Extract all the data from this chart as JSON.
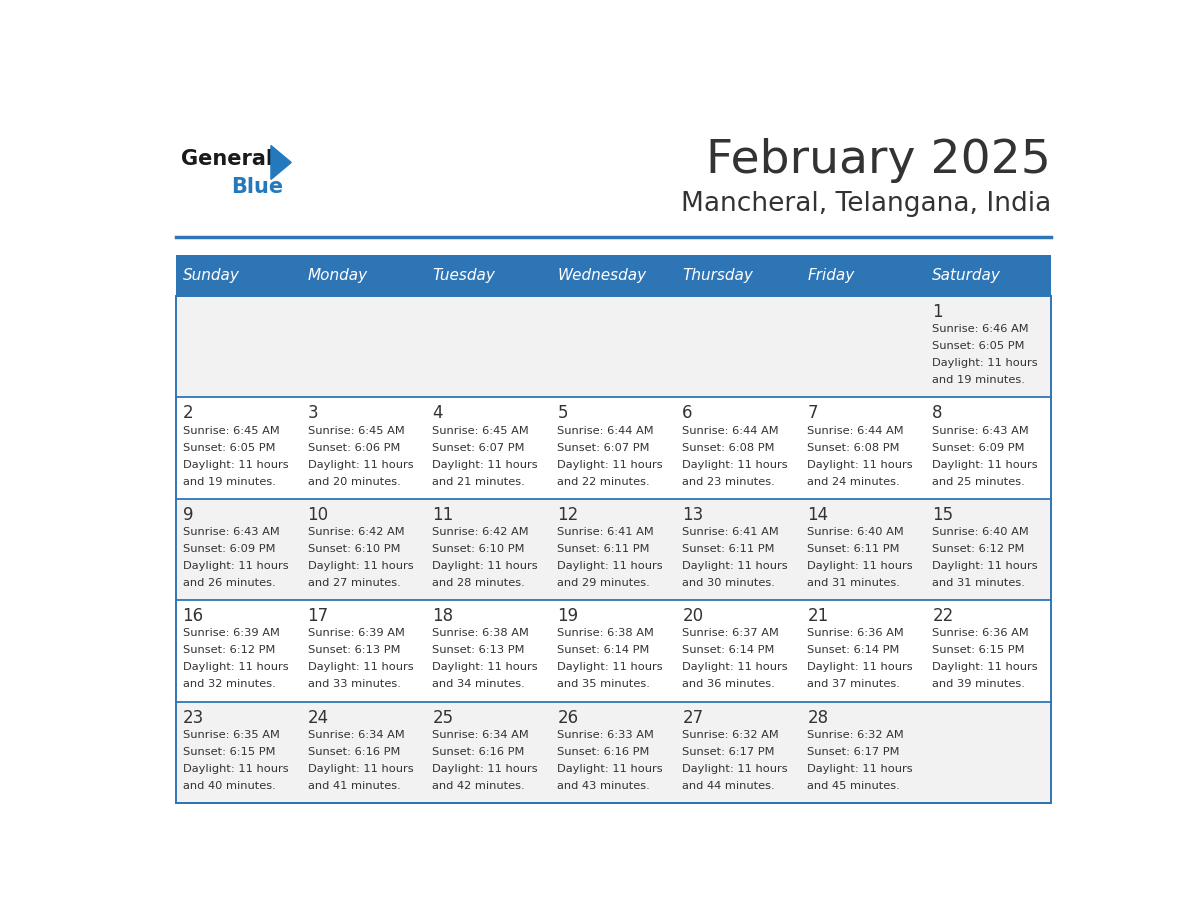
{
  "title": "February 2025",
  "subtitle": "Mancheral, Telangana, India",
  "header_bg": "#2E75B6",
  "header_text_color": "#FFFFFF",
  "day_names": [
    "Sunday",
    "Monday",
    "Tuesday",
    "Wednesday",
    "Thursday",
    "Friday",
    "Saturday"
  ],
  "row_bg_even": "#F2F2F2",
  "row_bg_odd": "#FFFFFF",
  "cell_border_color": "#2E75B6",
  "text_color": "#333333",
  "date_color": "#333333",
  "logo_general_color": "#1a1a1a",
  "logo_blue_color": "#2479BD",
  "days_data": [
    {
      "day": 1,
      "col": 6,
      "row": 0,
      "sunrise": "6:46 AM",
      "sunset": "6:05 PM",
      "daylight_hours": 11,
      "daylight_minutes": 19
    },
    {
      "day": 2,
      "col": 0,
      "row": 1,
      "sunrise": "6:45 AM",
      "sunset": "6:05 PM",
      "daylight_hours": 11,
      "daylight_minutes": 19
    },
    {
      "day": 3,
      "col": 1,
      "row": 1,
      "sunrise": "6:45 AM",
      "sunset": "6:06 PM",
      "daylight_hours": 11,
      "daylight_minutes": 20
    },
    {
      "day": 4,
      "col": 2,
      "row": 1,
      "sunrise": "6:45 AM",
      "sunset": "6:07 PM",
      "daylight_hours": 11,
      "daylight_minutes": 21
    },
    {
      "day": 5,
      "col": 3,
      "row": 1,
      "sunrise": "6:44 AM",
      "sunset": "6:07 PM",
      "daylight_hours": 11,
      "daylight_minutes": 22
    },
    {
      "day": 6,
      "col": 4,
      "row": 1,
      "sunrise": "6:44 AM",
      "sunset": "6:08 PM",
      "daylight_hours": 11,
      "daylight_minutes": 23
    },
    {
      "day": 7,
      "col": 5,
      "row": 1,
      "sunrise": "6:44 AM",
      "sunset": "6:08 PM",
      "daylight_hours": 11,
      "daylight_minutes": 24
    },
    {
      "day": 8,
      "col": 6,
      "row": 1,
      "sunrise": "6:43 AM",
      "sunset": "6:09 PM",
      "daylight_hours": 11,
      "daylight_minutes": 25
    },
    {
      "day": 9,
      "col": 0,
      "row": 2,
      "sunrise": "6:43 AM",
      "sunset": "6:09 PM",
      "daylight_hours": 11,
      "daylight_minutes": 26
    },
    {
      "day": 10,
      "col": 1,
      "row": 2,
      "sunrise": "6:42 AM",
      "sunset": "6:10 PM",
      "daylight_hours": 11,
      "daylight_minutes": 27
    },
    {
      "day": 11,
      "col": 2,
      "row": 2,
      "sunrise": "6:42 AM",
      "sunset": "6:10 PM",
      "daylight_hours": 11,
      "daylight_minutes": 28
    },
    {
      "day": 12,
      "col": 3,
      "row": 2,
      "sunrise": "6:41 AM",
      "sunset": "6:11 PM",
      "daylight_hours": 11,
      "daylight_minutes": 29
    },
    {
      "day": 13,
      "col": 4,
      "row": 2,
      "sunrise": "6:41 AM",
      "sunset": "6:11 PM",
      "daylight_hours": 11,
      "daylight_minutes": 30
    },
    {
      "day": 14,
      "col": 5,
      "row": 2,
      "sunrise": "6:40 AM",
      "sunset": "6:11 PM",
      "daylight_hours": 11,
      "daylight_minutes": 31
    },
    {
      "day": 15,
      "col": 6,
      "row": 2,
      "sunrise": "6:40 AM",
      "sunset": "6:12 PM",
      "daylight_hours": 11,
      "daylight_minutes": 31
    },
    {
      "day": 16,
      "col": 0,
      "row": 3,
      "sunrise": "6:39 AM",
      "sunset": "6:12 PM",
      "daylight_hours": 11,
      "daylight_minutes": 32
    },
    {
      "day": 17,
      "col": 1,
      "row": 3,
      "sunrise": "6:39 AM",
      "sunset": "6:13 PM",
      "daylight_hours": 11,
      "daylight_minutes": 33
    },
    {
      "day": 18,
      "col": 2,
      "row": 3,
      "sunrise": "6:38 AM",
      "sunset": "6:13 PM",
      "daylight_hours": 11,
      "daylight_minutes": 34
    },
    {
      "day": 19,
      "col": 3,
      "row": 3,
      "sunrise": "6:38 AM",
      "sunset": "6:14 PM",
      "daylight_hours": 11,
      "daylight_minutes": 35
    },
    {
      "day": 20,
      "col": 4,
      "row": 3,
      "sunrise": "6:37 AM",
      "sunset": "6:14 PM",
      "daylight_hours": 11,
      "daylight_minutes": 36
    },
    {
      "day": 21,
      "col": 5,
      "row": 3,
      "sunrise": "6:36 AM",
      "sunset": "6:14 PM",
      "daylight_hours": 11,
      "daylight_minutes": 37
    },
    {
      "day": 22,
      "col": 6,
      "row": 3,
      "sunrise": "6:36 AM",
      "sunset": "6:15 PM",
      "daylight_hours": 11,
      "daylight_minutes": 39
    },
    {
      "day": 23,
      "col": 0,
      "row": 4,
      "sunrise": "6:35 AM",
      "sunset": "6:15 PM",
      "daylight_hours": 11,
      "daylight_minutes": 40
    },
    {
      "day": 24,
      "col": 1,
      "row": 4,
      "sunrise": "6:34 AM",
      "sunset": "6:16 PM",
      "daylight_hours": 11,
      "daylight_minutes": 41
    },
    {
      "day": 25,
      "col": 2,
      "row": 4,
      "sunrise": "6:34 AM",
      "sunset": "6:16 PM",
      "daylight_hours": 11,
      "daylight_minutes": 42
    },
    {
      "day": 26,
      "col": 3,
      "row": 4,
      "sunrise": "6:33 AM",
      "sunset": "6:16 PM",
      "daylight_hours": 11,
      "daylight_minutes": 43
    },
    {
      "day": 27,
      "col": 4,
      "row": 4,
      "sunrise": "6:32 AM",
      "sunset": "6:17 PM",
      "daylight_hours": 11,
      "daylight_minutes": 44
    },
    {
      "day": 28,
      "col": 5,
      "row": 4,
      "sunrise": "6:32 AM",
      "sunset": "6:17 PM",
      "daylight_hours": 11,
      "daylight_minutes": 45
    }
  ]
}
